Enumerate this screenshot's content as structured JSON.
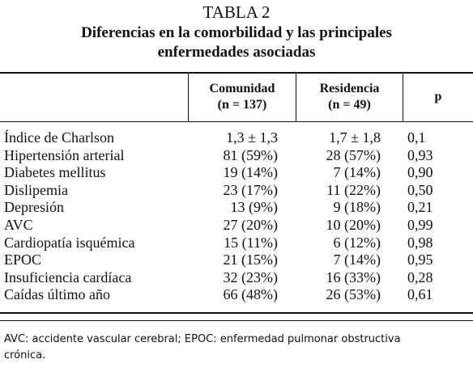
{
  "header": {
    "number": "TABLA 2",
    "title_lines": [
      "Diferencias en la comorbilidad y las principales",
      "enfermedades asociadas"
    ]
  },
  "table": {
    "columns": [
      [
        "Comunidad",
        "(n = 137)"
      ],
      [
        "Residencia",
        "(n = 49)"
      ],
      [
        "p"
      ]
    ],
    "rows": [
      [
        "Índice de Charlson",
        "1,3 ± 1,3",
        "1,7 ± 1,8",
        "0,1"
      ],
      [
        "Hipertensión arterial",
        "81 (59%)",
        "28 (57%)",
        "0,93"
      ],
      [
        "Diabetes mellitus",
        "19 (14%)",
        "7 (14%)",
        "0,90"
      ],
      [
        "Dislipemia",
        "23 (17%)",
        "11 (22%)",
        "0,50"
      ],
      [
        "Depresión",
        "13 (9%)",
        "9 (18%)",
        "0,21"
      ],
      [
        "AVC",
        "27 (20%)",
        "10 (20%)",
        "0,99"
      ],
      [
        "Cardiopatía isquémica",
        "15 (11%)",
        "6 (12%)",
        "0,98"
      ],
      [
        "EPOC",
        "21 (15%)",
        "7 (14%)",
        "0,95"
      ],
      [
        "Insuficiencia cardíaca",
        "32 (23%)",
        "16 (33%)",
        "0,28"
      ],
      [
        "Caídas último año",
        "66 (48%)",
        "26 (53%)",
        "0,61"
      ]
    ]
  },
  "footnote": {
    "lines": [
      "AVC: accidente vascular cerebral; EPOC: enfermedad pulmonar obstructiva",
      "crónica."
    ]
  }
}
